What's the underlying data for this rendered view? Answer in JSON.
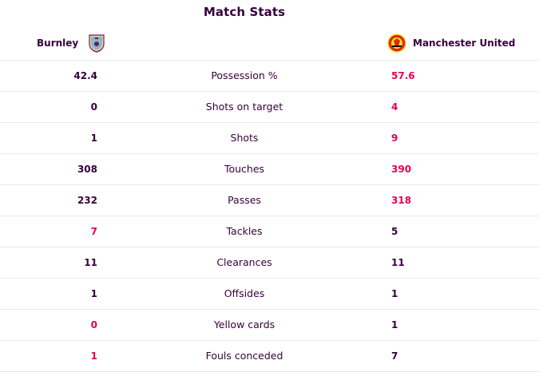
{
  "header": {
    "title": "Match Stats"
  },
  "teams": {
    "home": {
      "name": "Burnley",
      "crest_icon": "burnley-crest-icon"
    },
    "away": {
      "name": "Manchester United",
      "crest_icon": "manchester-united-crest-icon"
    }
  },
  "colors": {
    "primary_text": "#37003c",
    "leader_highlight": "#e90052",
    "divider": "#e8e8e8"
  },
  "stats": [
    {
      "label": "Possession %",
      "home": "42.4",
      "away": "57.6",
      "leader": "away"
    },
    {
      "label": "Shots on target",
      "home": "0",
      "away": "4",
      "leader": "away"
    },
    {
      "label": "Shots",
      "home": "1",
      "away": "9",
      "leader": "away"
    },
    {
      "label": "Touches",
      "home": "308",
      "away": "390",
      "leader": "away"
    },
    {
      "label": "Passes",
      "home": "232",
      "away": "318",
      "leader": "away"
    },
    {
      "label": "Tackles",
      "home": "7",
      "away": "5",
      "leader": "home"
    },
    {
      "label": "Clearances",
      "home": "11",
      "away": "11",
      "leader": "none"
    },
    {
      "label": "Offsides",
      "home": "1",
      "away": "1",
      "leader": "none"
    },
    {
      "label": "Yellow cards",
      "home": "0",
      "away": "1",
      "leader": "home"
    },
    {
      "label": "Fouls conceded",
      "home": "1",
      "away": "7",
      "leader": "home"
    }
  ]
}
